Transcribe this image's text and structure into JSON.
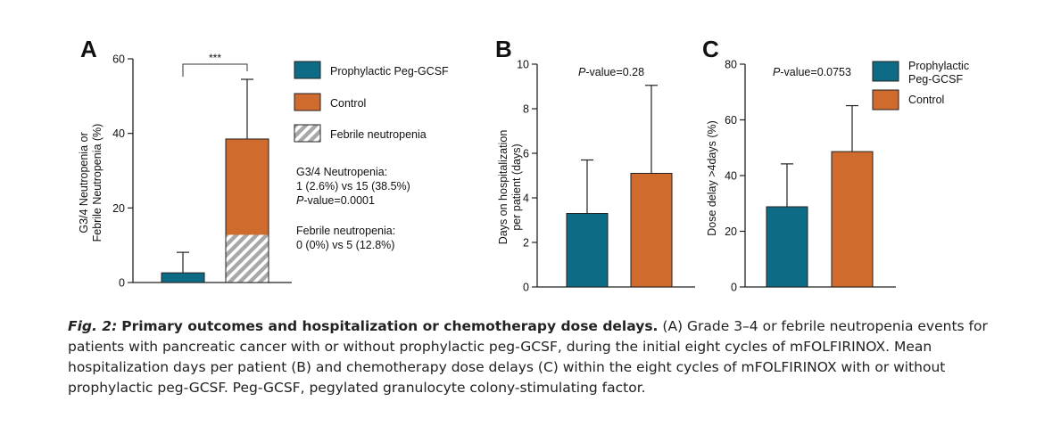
{
  "colors": {
    "peg": "#0d6b85",
    "control": "#cf6b2c",
    "axis": "#222222"
  },
  "chart_data": [
    {
      "panel": "A",
      "type": "bar",
      "ylabel": [
        "G3/4 Neutropenia or",
        "Febrile Neutropenia (%)"
      ],
      "ylim": [
        0,
        60
      ],
      "yticks": [
        0,
        20,
        40,
        60
      ],
      "series": [
        {
          "name": "Prophylactic Peg-GCSF",
          "value": 2.6,
          "error": 8.1,
          "color": "#0d6b85",
          "febrile": 0
        },
        {
          "name": "Control",
          "value": 38.5,
          "error": 54.5,
          "color": "#cf6b2c",
          "febrile": 12.8
        }
      ],
      "significance": "***",
      "legend": [
        "Prophylactic Peg-GCSF",
        "Control",
        "Febrile neutropenia"
      ],
      "annotations": [
        {
          "lines": [
            "G3/4 Neutropenia:",
            "1 (2.6%) vs 15 (38.5%)",
            "P-value=0.0001"
          ]
        },
        {
          "lines": [
            "Febrile neutropenia:",
            "0 (0%) vs 5 (12.8%)"
          ]
        }
      ]
    },
    {
      "panel": "B",
      "type": "bar",
      "ylabel": [
        "Days on hospitalization",
        "per patient (days)"
      ],
      "ylim": [
        0,
        10
      ],
      "yticks": [
        0,
        2,
        4,
        6,
        8,
        10
      ],
      "pvalue": "-value=0.28",
      "series": [
        {
          "name": "Prophylactic Peg-GCSF",
          "value": 3.3,
          "error": 5.7,
          "color": "#0d6b85"
        },
        {
          "name": "Control",
          "value": 5.1,
          "error": 9.05,
          "color": "#cf6b2c"
        }
      ]
    },
    {
      "panel": "C",
      "type": "bar",
      "ylabel": [
        "Dose delay >4days (%)"
      ],
      "ylim": [
        0,
        80
      ],
      "yticks": [
        0,
        20,
        40,
        60,
        80
      ],
      "pvalue": "-value=0.0753",
      "series": [
        {
          "name": "Prophylactic Peg-GCSF",
          "value": 28.8,
          "error": 44.2,
          "color": "#0d6b85"
        },
        {
          "name": "Control",
          "value": 48.6,
          "error": 65.1,
          "color": "#cf6b2c"
        }
      ],
      "legend": [
        [
          "Prophylactic",
          "Peg-GCSF"
        ],
        [
          "Control"
        ]
      ]
    }
  ],
  "caption": {
    "fig": "Fig. 2:",
    "title": "Primary outcomes and hospitalization or chemotherapy dose delays.",
    "body": "(A) Grade 3–4 or febrile neutropenia events for patients with pancreatic cancer with or without prophylactic peg-GCSF, during the initial eight cycles of mFOLFIRINOX. Mean hospitalization days per patient (B) and chemotherapy dose delays (C) within the eight cycles of mFOLFIRINOX with or without prophylactic peg-GCSF. Peg-GCSF, pegylated granulocyte colony-stimulating factor."
  }
}
